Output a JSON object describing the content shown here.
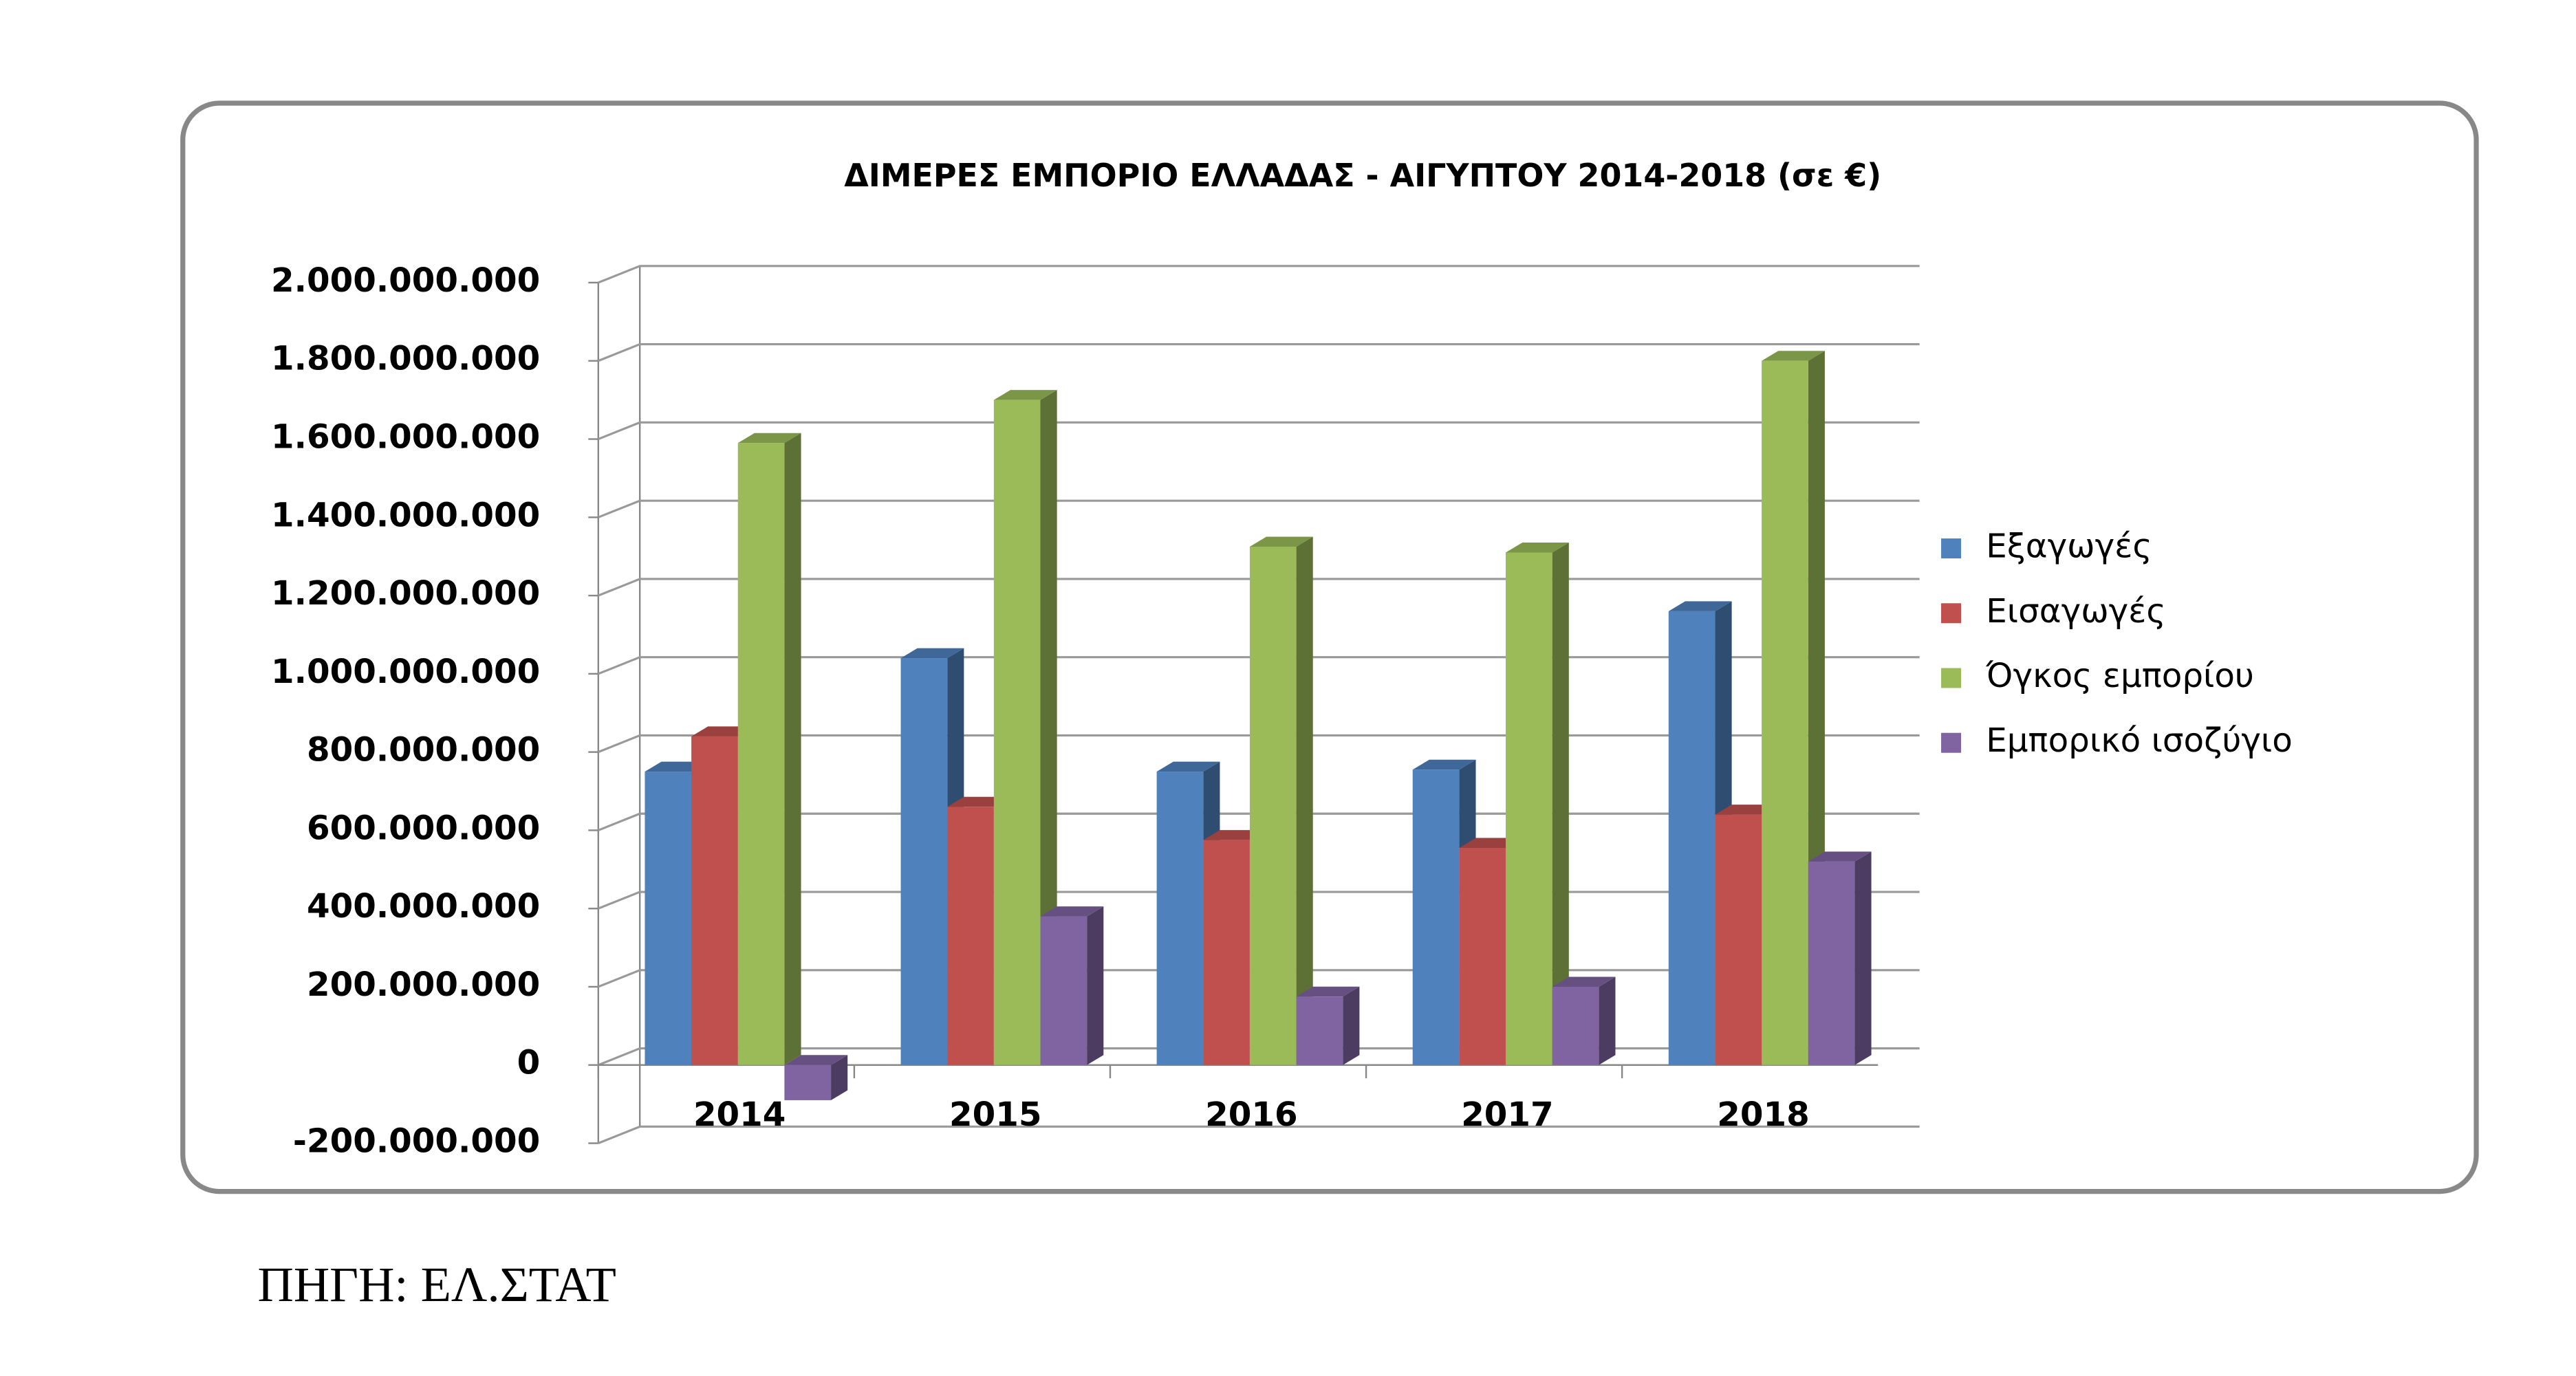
{
  "chart_data": {
    "type": "bar3d",
    "title": "ΔΙΜΕΡΕΣ ΕΜΠΟΡΙΟ ΕΛΛΑΔΑΣ - ΑΙΓΥΠΤΟΥ 2014-2018 (σε €)",
    "categories": [
      "2014",
      "2015",
      "2016",
      "2017",
      "2018"
    ],
    "series": [
      {
        "name": "Εξαγωγές",
        "color": "#4f81bd",
        "values": [
          750000000,
          1040000000,
          750000000,
          755000000,
          1160000000
        ]
      },
      {
        "name": "Εισαγωγές",
        "color": "#c0504d",
        "values": [
          840000000,
          660000000,
          575000000,
          555000000,
          640000000
        ]
      },
      {
        "name": "Όγκος εμπορίου",
        "color": "#9bbb59",
        "values": [
          1590000000,
          1700000000,
          1325000000,
          1310000000,
          1800000000
        ]
      },
      {
        "name": "Εμπορικό ισοζύγιο",
        "color": "#8064a2",
        "values": [
          -90000000,
          380000000,
          175000000,
          200000000,
          520000000
        ]
      }
    ],
    "ylim": [
      -200000000,
      2000000000
    ],
    "yticks": [
      {
        "value": -200000000,
        "label": "-200.000.000"
      },
      0,
      {
        "value": 200000000,
        "label": "200.000.000"
      },
      {
        "value": 400000000,
        "label": "400.000.000"
      },
      {
        "value": 600000000,
        "label": "600.000.000"
      },
      {
        "value": 800000000,
        "label": "800.000.000"
      },
      {
        "value": 1000000000,
        "label": "1.000.000.000"
      },
      {
        "value": 1200000000,
        "label": "1.200.000.000"
      },
      {
        "value": 1400000000,
        "label": "1.400.000.000"
      },
      {
        "value": 1600000000,
        "label": "1.600.000.000"
      },
      {
        "value": 1800000000,
        "label": "1.800.000.000"
      },
      {
        "value": 2000000000,
        "label": "2.000.000.000"
      }
    ],
    "grid": true,
    "legend": "right"
  },
  "source": "ΠΗΓΗ: ΕΛ.ΣΤΑΤ"
}
